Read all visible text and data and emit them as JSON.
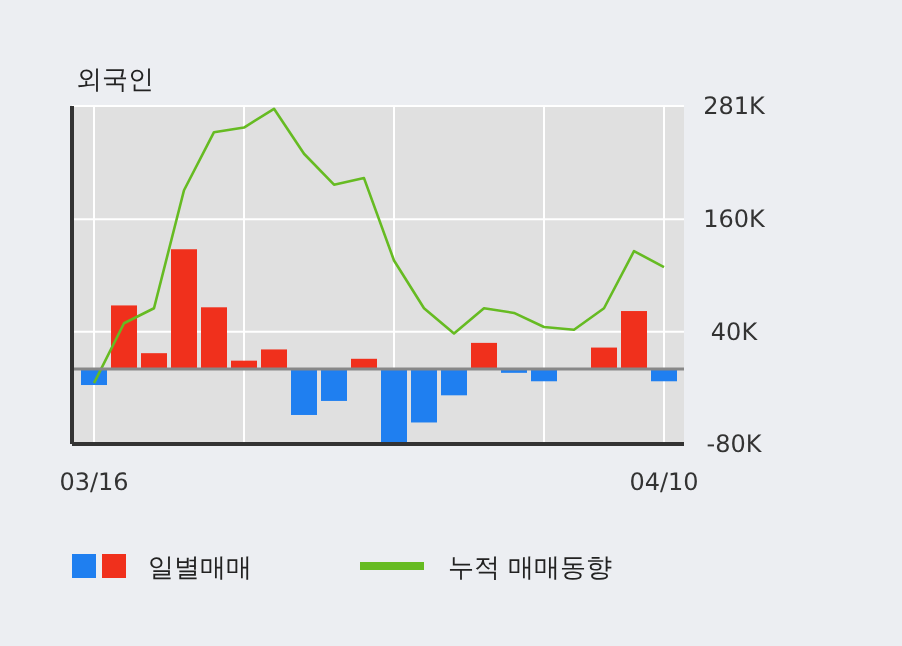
{
  "chart_data": {
    "type": "bar",
    "title": "외국인",
    "categories": [
      "03/16",
      null,
      null,
      null,
      null,
      null,
      null,
      null,
      null,
      null,
      null,
      null,
      null,
      null,
      null,
      null,
      null,
      null,
      null,
      "04/10"
    ],
    "series": [
      {
        "name": "일별매매",
        "values": [
          -17,
          68,
          17,
          128,
          66,
          9,
          21,
          -49,
          -34,
          11,
          -79,
          -57,
          -28,
          28,
          -4,
          -13,
          0,
          23,
          62,
          -13
        ],
        "colors": [
          "#1f7ff0",
          "#f0301c",
          "#f0301c",
          "#f0301c",
          "#f0301c",
          "#f0301c",
          "#f0301c",
          "#1f7ff0",
          "#1f7ff0",
          "#f0301c",
          "#1f7ff0",
          "#1f7ff0",
          "#1f7ff0",
          "#f0301c",
          "#1f7ff0",
          "#1f7ff0",
          "#f0301c",
          "#f0301c",
          "#f0301c",
          "#1f7ff0"
        ]
      },
      {
        "name": "누적 매매동향",
        "type": "line",
        "color": "#66bb22",
        "values": [
          -15,
          49,
          65,
          191,
          253,
          258,
          278,
          230,
          197,
          204,
          116,
          65,
          38,
          65,
          60,
          45,
          42,
          65,
          126,
          109
        ]
      }
    ],
    "ylim": [
      -80,
      281
    ],
    "yticks": [
      {
        "value": -80,
        "label": "-80K"
      },
      {
        "value": 40,
        "label": "40K"
      },
      {
        "value": 160,
        "label": "160K"
      },
      {
        "value": 281,
        "label": "281K"
      }
    ],
    "grid": true,
    "legend": "bottom"
  }
}
